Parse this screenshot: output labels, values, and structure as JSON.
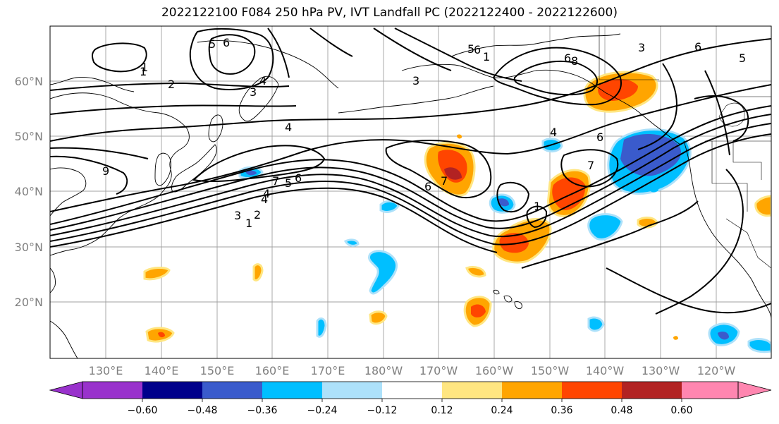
{
  "title": "2022122100 F084 250 hPa PV, IVT Landfall PC (2022122400 - 2022122600)",
  "lat_labels": [
    "60°N",
    "50°N",
    "40°N",
    "30°N",
    "20°N"
  ],
  "lon_labels": [
    "130°E",
    "140°E",
    "150°E",
    "160°E",
    "170°E",
    "180°W",
    "170°W",
    "160°W",
    "150°W",
    "140°W",
    "130°W",
    "120°W"
  ],
  "contour_labels": [
    "1",
    "2",
    "3",
    "4",
    "5",
    "6",
    "4",
    "3",
    "5",
    "6",
    "1",
    "6",
    "8",
    "3",
    "4",
    "6",
    "7",
    "1",
    "2",
    "3",
    "4",
    "5",
    "6",
    "7",
    "1",
    "4",
    "6",
    "7",
    "1",
    "6",
    "5",
    "9"
  ],
  "colorbar": {
    "ticks": [
      "−0.60",
      "−0.48",
      "−0.36",
      "−0.24",
      "−0.12",
      "0.12",
      "0.24",
      "0.36",
      "0.48",
      "0.60"
    ],
    "colors": [
      "#9932CC",
      "#00008B",
      "#3A5BCC",
      "#00BFFF",
      "#ADE1FA",
      "#FFFFFF",
      "#FFE681",
      "#FFA500",
      "#FF4500",
      "#B22222",
      "#FF86B0",
      "#FF86B0"
    ],
    "under_color": "#9932CC",
    "over_color": "#FF86B0"
  },
  "gridlines": true
}
